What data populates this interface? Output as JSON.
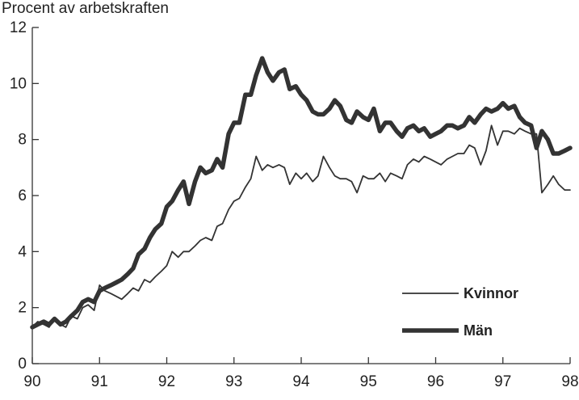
{
  "chart_data": {
    "type": "line",
    "title": "",
    "ylabel": "Procent av arbetskraften",
    "xlabel": "",
    "xlim": [
      90,
      98
    ],
    "ylim": [
      0,
      12
    ],
    "xticks": [
      "90",
      "91",
      "92",
      "93",
      "94",
      "95",
      "96",
      "97",
      "98"
    ],
    "yticks": [
      "0",
      "2",
      "4",
      "6",
      "8",
      "10",
      "12"
    ],
    "grid": false,
    "legend_position": "lower-right",
    "series": [
      {
        "name": "Kvinnor",
        "color": "#333333",
        "x": [
          90.0,
          90.08,
          90.17,
          90.25,
          90.33,
          90.42,
          90.5,
          90.58,
          90.67,
          90.75,
          90.83,
          90.92,
          91.0,
          91.08,
          91.17,
          91.25,
          91.33,
          91.42,
          91.5,
          91.58,
          91.67,
          91.75,
          91.83,
          91.92,
          92.0,
          92.08,
          92.17,
          92.25,
          92.33,
          92.42,
          92.5,
          92.58,
          92.67,
          92.75,
          92.83,
          92.92,
          93.0,
          93.08,
          93.17,
          93.25,
          93.33,
          93.42,
          93.5,
          93.58,
          93.67,
          93.75,
          93.83,
          93.92,
          94.0,
          94.08,
          94.17,
          94.25,
          94.33,
          94.42,
          94.5,
          94.58,
          94.67,
          94.75,
          94.83,
          94.92,
          95.0,
          95.08,
          95.17,
          95.25,
          95.33,
          95.42,
          95.5,
          95.58,
          95.67,
          95.75,
          95.83,
          95.92,
          96.0,
          96.08,
          96.17,
          96.25,
          96.33,
          96.42,
          96.5,
          96.58,
          96.67,
          96.75,
          96.83,
          96.92,
          97.0,
          97.08,
          97.17,
          97.25,
          97.33,
          97.42,
          97.5,
          97.58,
          97.67,
          97.75,
          97.83,
          97.92,
          98.0
        ],
        "values": [
          1.3,
          1.5,
          1.4,
          1.3,
          1.6,
          1.4,
          1.3,
          1.7,
          1.6,
          2.0,
          2.1,
          1.9,
          2.8,
          2.6,
          2.5,
          2.4,
          2.3,
          2.5,
          2.7,
          2.6,
          3.0,
          2.9,
          3.1,
          3.3,
          3.5,
          4.0,
          3.8,
          4.0,
          4.0,
          4.2,
          4.4,
          4.5,
          4.4,
          4.9,
          5.0,
          5.5,
          5.8,
          5.9,
          6.3,
          6.6,
          7.4,
          6.9,
          7.1,
          7.0,
          7.1,
          7.0,
          6.4,
          6.8,
          6.6,
          6.8,
          6.5,
          6.7,
          7.4,
          7.0,
          6.7,
          6.6,
          6.6,
          6.5,
          6.1,
          6.7,
          6.6,
          6.6,
          6.8,
          6.5,
          6.8,
          6.7,
          6.6,
          7.1,
          7.3,
          7.2,
          7.4,
          7.3,
          7.2,
          7.1,
          7.3,
          7.4,
          7.5,
          7.5,
          7.8,
          7.7,
          7.1,
          7.6,
          8.5,
          7.8,
          8.3,
          8.3,
          8.2,
          8.4,
          8.3,
          8.2,
          8.2,
          6.1,
          6.4,
          6.7,
          6.4,
          6.2,
          6.2
        ]
      },
      {
        "name": "Män",
        "color": "#333333",
        "x": [
          90.0,
          90.08,
          90.17,
          90.25,
          90.33,
          90.42,
          90.5,
          90.58,
          90.67,
          90.75,
          90.83,
          90.92,
          91.0,
          91.08,
          91.17,
          91.25,
          91.33,
          91.42,
          91.5,
          91.58,
          91.67,
          91.75,
          91.83,
          91.92,
          92.0,
          92.08,
          92.17,
          92.25,
          92.33,
          92.42,
          92.5,
          92.58,
          92.67,
          92.75,
          92.83,
          92.92,
          93.0,
          93.08,
          93.17,
          93.25,
          93.33,
          93.42,
          93.5,
          93.58,
          93.67,
          93.75,
          93.83,
          93.92,
          94.0,
          94.08,
          94.17,
          94.25,
          94.33,
          94.42,
          94.5,
          94.58,
          94.67,
          94.75,
          94.83,
          94.92,
          95.0,
          95.08,
          95.17,
          95.25,
          95.33,
          95.42,
          95.5,
          95.58,
          95.67,
          95.75,
          95.83,
          95.92,
          96.0,
          96.08,
          96.17,
          96.25,
          96.33,
          96.42,
          96.5,
          96.58,
          96.67,
          96.75,
          96.83,
          96.92,
          97.0,
          97.08,
          97.17,
          97.25,
          97.33,
          97.42,
          97.5,
          97.58,
          97.67,
          97.75,
          97.83,
          97.92,
          98.0
        ],
        "values": [
          1.3,
          1.4,
          1.5,
          1.4,
          1.6,
          1.4,
          1.5,
          1.7,
          1.9,
          2.2,
          2.3,
          2.2,
          2.6,
          2.7,
          2.8,
          2.9,
          3.0,
          3.2,
          3.4,
          3.9,
          4.1,
          4.5,
          4.8,
          5.0,
          5.6,
          5.8,
          6.2,
          6.5,
          5.7,
          6.5,
          7.0,
          6.8,
          6.9,
          7.3,
          7.0,
          8.2,
          8.6,
          8.6,
          9.6,
          9.6,
          10.3,
          10.9,
          10.4,
          10.1,
          10.4,
          10.5,
          9.8,
          9.9,
          9.6,
          9.4,
          9.0,
          8.9,
          8.9,
          9.1,
          9.4,
          9.2,
          8.7,
          8.6,
          9.0,
          8.8,
          8.7,
          9.1,
          8.3,
          8.6,
          8.6,
          8.3,
          8.1,
          8.4,
          8.5,
          8.3,
          8.4,
          8.1,
          8.2,
          8.3,
          8.5,
          8.5,
          8.4,
          8.5,
          8.8,
          8.6,
          8.9,
          9.1,
          9.0,
          9.1,
          9.3,
          9.1,
          9.2,
          8.8,
          8.6,
          8.5,
          7.7,
          8.3,
          8.0,
          7.5,
          7.5,
          7.6,
          7.7
        ]
      }
    ]
  }
}
